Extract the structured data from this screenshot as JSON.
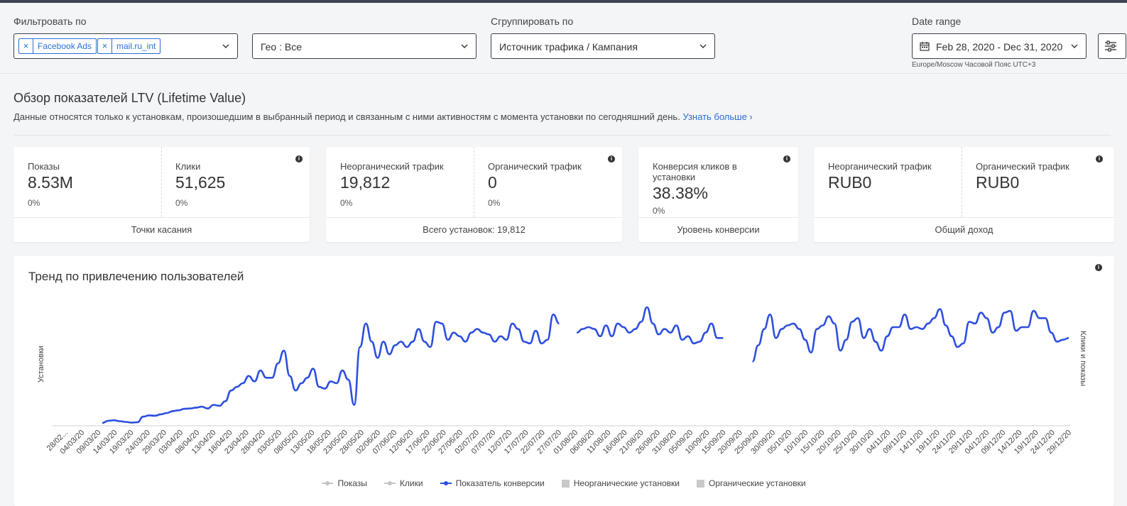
{
  "filters": {
    "filter_label": "Фильтровать по",
    "tags": [
      "Facebook Ads",
      "mail.ru_int"
    ],
    "tag_remove": "×",
    "geo_value": "Гео : Все",
    "group_label": "Сгруппировать по",
    "group_value": "Источник трафика / Кампания",
    "date_label": "Date range",
    "date_value": "Feb 28, 2020 - Dec 31, 2020",
    "timezone": "Europe/Moscow Часовой Пояс UTC+3"
  },
  "overview": {
    "title": "Обзор показателей LTV (Lifetime Value)",
    "description": "Данные относятся только к установкам, произошедшим в выбранный период и связанным с ними активностям с момента установки по сегодняшний день.",
    "learn_more": "Узнать больше ›"
  },
  "cards": {
    "touchpoints": {
      "m1": {
        "label": "Показы",
        "value": "8.53M",
        "pct": "0%"
      },
      "m2": {
        "label": "Клики",
        "value": "51,625",
        "pct": "0%"
      },
      "footer": "Точки касания"
    },
    "installs": {
      "m1": {
        "label": "Неорганический трафик",
        "value": "19,812",
        "pct": "0%"
      },
      "m2": {
        "label": "Органический трафик",
        "value": "0",
        "pct": "0%"
      },
      "footer": "Всего установок: 19,812"
    },
    "conversion": {
      "m1": {
        "label": "Конверсия кликов в установки",
        "value": "38.38%",
        "pct": "0%"
      },
      "footer": "Уровень конверсии"
    },
    "revenue": {
      "m1": {
        "label": "Неорганический трафик",
        "value": "RUB0"
      },
      "m2": {
        "label": "Органический трафик",
        "value": "RUB0"
      },
      "footer": "Общий доход"
    }
  },
  "trend": {
    "title": "Тренд по привлечению пользователей",
    "ylabel_left": "Установки",
    "ylabel_right": "Клики и показы",
    "legend": [
      {
        "label": "Показы",
        "kind": "line",
        "color": "#c4c4c4"
      },
      {
        "label": "Клики",
        "kind": "line",
        "color": "#c4c4c4"
      },
      {
        "label": "Показатель конверсии",
        "kind": "line",
        "color": "#2c4fdf"
      },
      {
        "label": "Неорганические установки",
        "kind": "box",
        "color": "#c9c9c9"
      },
      {
        "label": "Органические установки",
        "kind": "box",
        "color": "#c9c9c9"
      }
    ]
  },
  "colors": {
    "accent": "#2a6fd3",
    "series": "#2c4fdf"
  },
  "chart_data": {
    "type": "line",
    "title": "Тренд по привлечению пользователей",
    "ylabel": "Установки",
    "y2label": "Клики и показы",
    "x_ticks": [
      "28/02...",
      "04/03/20",
      "09/03/20",
      "14/03/20",
      "19/03/20",
      "24/03/20",
      "29/03/20",
      "03/04/20",
      "08/04/20",
      "13/04/20",
      "18/04/20",
      "23/04/20",
      "28/04/20",
      "03/05/20",
      "08/05/20",
      "13/05/20",
      "18/05/20",
      "23/05/20",
      "28/05/20",
      "02/06/20",
      "07/06/20",
      "12/06/20",
      "17/06/20",
      "22/06/20",
      "27/06/20",
      "02/07/20",
      "07/07/20",
      "12/07/20",
      "17/07/20",
      "22/07/20",
      "27/07/20",
      "01/08/20",
      "06/08/20",
      "11/08/20",
      "16/08/20",
      "21/08/20",
      "26/08/20",
      "31/08/20",
      "05/09/20",
      "10/09/20",
      "15/09/20",
      "20/09/20",
      "25/09/20",
      "30/09/20",
      "05/10/20",
      "10/10/20",
      "15/10/20",
      "20/10/20",
      "25/10/20",
      "30/10/20",
      "04/11/20",
      "09/11/20",
      "14/11/20",
      "19/11/20",
      "24/11/20",
      "29/11/20",
      "04/12/20",
      "09/12/20",
      "14/12/20",
      "19/12/20",
      "24/12/20",
      "29/12/20"
    ],
    "series": [
      {
        "name": "Показатель конверсии",
        "segments": [
          [
            0,
            0,
            0,
            0,
            0,
            0,
            0,
            0,
            0,
            0,
            0,
            0,
            0,
            0,
            0,
            0,
            0,
            0,
            0,
            0,
            0,
            0,
            0,
            0,
            0,
            0,
            0,
            0,
            0,
            0,
            0,
            0,
            0,
            0,
            0,
            0,
            0,
            0,
            0,
            0,
            0,
            0,
            0,
            0,
            0,
            0,
            0,
            0,
            0,
            1.2,
            1.5,
            1.0,
            0.6,
            0.2,
            0.4,
            3.5,
            4.2,
            4.0,
            4.8,
            5.5,
            6.5,
            7.0,
            7.8,
            8.0,
            8.5,
            9.0,
            8.0,
            10.0,
            9.5,
            12,
            18,
            20,
            22,
            26,
            23,
            29,
            25,
            25,
            33,
            40,
            26,
            18,
            22,
            25,
            30,
            20,
            19,
            23,
            22,
            29,
            24,
            10,
            42,
            55,
            45,
            36,
            45,
            38,
            43,
            45,
            42,
            45,
            52,
            45,
            42,
            56,
            55,
            46,
            50,
            48,
            45,
            50,
            52,
            50,
            49,
            45,
            48,
            46,
            55,
            52,
            45,
            44,
            51,
            44,
            46,
            60,
            55,
            54,
            55,
            50,
            52,
            53,
            52,
            48,
            54,
            48,
            55,
            53,
            50,
            52,
            56,
            64,
            55,
            49,
            52,
            50,
            54,
            46,
            48,
            44,
            45,
            50,
            55,
            47,
            47,
            60,
            55,
            46,
            44,
            34,
            43,
            52,
            60,
            47,
            52,
            54,
            55,
            52,
            46,
            39,
            52,
            54,
            59,
            55,
            40,
            46,
            56,
            58,
            47,
            52,
            45,
            40,
            48,
            53,
            53,
            60,
            52,
            53,
            52,
            55,
            58,
            63,
            54,
            48,
            42,
            44,
            56,
            55,
            61,
            58,
            50,
            53,
            61,
            62,
            51,
            53,
            53,
            62,
            58,
            58,
            50,
            45,
            46,
            47
          ]
        ]
      }
    ]
  }
}
